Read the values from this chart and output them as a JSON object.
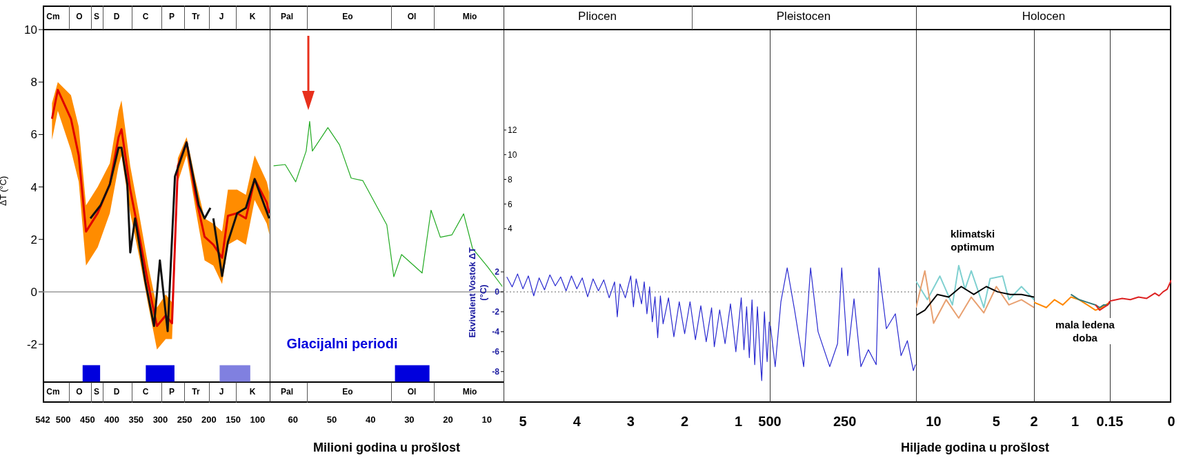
{
  "chart_data": [
    {
      "type": "line",
      "ylabel": "ΔT (°C)",
      "xlim": [
        542,
        75
      ],
      "xticks": [
        542,
        500,
        450,
        400,
        350,
        300,
        250,
        200,
        150,
        100
      ],
      "ylim": [
        -3.44,
        10
      ],
      "yticks": [
        -2,
        0,
        2,
        4,
        6,
        8,
        10
      ],
      "series": [
        {
          "color": "#e00000",
          "x": [
            523,
            511,
            484,
            468,
            453,
            429,
            404,
            386,
            380,
            362,
            343,
            325,
            307,
            289,
            276,
            264,
            246,
            228,
            209,
            191,
            173,
            161,
            142,
            124,
            106,
            81,
            76
          ],
          "values": [
            6.6,
            7.7,
            6.6,
            5.2,
            2.3,
            3.0,
            4.1,
            5.9,
            6.2,
            3.9,
            2.1,
            0.3,
            -1.3,
            -0.9,
            -1.2,
            4.8,
            5.7,
            3.7,
            2.1,
            1.8,
            1.3,
            2.9,
            3.0,
            2.8,
            4.3,
            3.4,
            3.0
          ],
          "lower": [
            5.8,
            6.9,
            5.4,
            4.2,
            1.0,
            1.7,
            3.0,
            4.8,
            5.2,
            3.0,
            1.3,
            -0.5,
            -2.2,
            -1.8,
            -1.8,
            4.2,
            5.2,
            3.2,
            1.2,
            1.0,
            0.3,
            1.8,
            2.0,
            1.8,
            3.5,
            2.6,
            2.2
          ],
          "upper": [
            7.2,
            8.0,
            7.5,
            6.3,
            3.3,
            4.0,
            4.9,
            6.9,
            7.3,
            4.8,
            2.9,
            1.0,
            -0.6,
            -0.1,
            -0.4,
            5.1,
            5.9,
            4.3,
            2.8,
            2.6,
            2.3,
            3.9,
            3.9,
            3.7,
            5.2,
            4.2,
            3.8
          ]
        },
        {
          "color": "#111111",
          "x": [
            444,
            423,
            404,
            386,
            380,
            368,
            362,
            352,
            331,
            313,
            301,
            285,
            270,
            246,
            221,
            209,
            197,
            194,
            191,
            173,
            161,
            142,
            124,
            106,
            94,
            76
          ],
          "values": [
            2.8,
            3.3,
            4.1,
            5.5,
            5.5,
            4.1,
            1.5,
            2.8,
            0.4,
            -1.3,
            1.2,
            -1.5,
            4.4,
            5.7,
            3.3,
            2.8,
            3.2,
            null,
            2.8,
            0.6,
            1.9,
            3.0,
            3.2,
            4.3,
            3.7,
            2.8
          ]
        }
      ],
      "ref_lines": [
        {
          "axis": "y",
          "value": 0,
          "color": "#999999",
          "line_style": "solid"
        }
      ],
      "bands": [
        {
          "axis": "x",
          "from": 460,
          "to": 424,
          "color": "#0000dd"
        },
        {
          "axis": "x",
          "from": 330,
          "to": 271,
          "color": "#0000dd"
        },
        {
          "axis": "x",
          "from": 178,
          "to": 115,
          "color": "#8080e0"
        }
      ],
      "annotations": [
        "Cm",
        "O",
        "S",
        "D",
        "C",
        "P",
        "Tr",
        "J",
        "K"
      ]
    },
    {
      "type": "line",
      "xlabel": "Milioni godina u prošlost",
      "y2label": "Ekvivalent Vostok ΔT (°C)",
      "xlim": [
        66,
        5.7
      ],
      "xticks": [
        60,
        50,
        40,
        30,
        20,
        10
      ],
      "y2lim": [
        -9.05,
        26.3
      ],
      "y2ticks": [
        2,
        0,
        -2,
        -4,
        -6,
        -8
      ],
      "y3lim": [
        -8.45,
        20.15
      ],
      "y3ticks": [
        4,
        6,
        8,
        10,
        12
      ],
      "series": [
        {
          "color": "#22aa22",
          "axis": "y3",
          "x": [
            65,
            62,
            59.3,
            56.6,
            55.7,
            55,
            51,
            48,
            45,
            42,
            35.8,
            34,
            32,
            26.7,
            24.4,
            22,
            19,
            16,
            13.7,
            9.8,
            6
          ],
          "values": [
            9.1,
            9.2,
            7.8,
            10.3,
            12.7,
            10.3,
            12.2,
            10.8,
            8.1,
            7.9,
            4.3,
            0.1,
            1.9,
            0.4,
            5.5,
            3.3,
            3.5,
            5.2,
            2.4,
            0.9,
            -0.7
          ]
        }
      ],
      "ref_lines": [
        {
          "axis": "y2",
          "value": 0,
          "color": "#999999",
          "line_style": "solid"
        }
      ],
      "bands": [
        {
          "axis": "x",
          "from": 33.7,
          "to": 24.8,
          "color": "#0000dd"
        }
      ],
      "annotations": [
        "Pal",
        "Eo",
        "Ol",
        "Mio",
        "Glacijalni periodi"
      ]
    },
    {
      "type": "line",
      "xlim": [
        5.36,
        0.42
      ],
      "xticks": [
        5,
        4,
        3,
        2,
        1
      ],
      "y2lim": [
        -11.12,
        26.3
      ],
      "y2ticks": [
        2,
        0,
        -2,
        -4,
        -6,
        -8
      ],
      "tick_labels": "x",
      "series": [
        {
          "color": "#2a2ad0",
          "axis": "y2",
          "x": [
            5.3,
            5.2,
            5.1,
            5.0,
            4.9,
            4.8,
            4.7,
            4.6,
            4.5,
            4.4,
            4.3,
            4.2,
            4.1,
            4.0,
            3.9,
            3.8,
            3.7,
            3.6,
            3.5,
            3.4,
            3.3,
            3.25,
            3.2,
            3.1,
            3.0,
            2.95,
            2.9,
            2.8,
            2.75,
            2.7,
            2.65,
            2.6,
            2.55,
            2.5,
            2.45,
            2.4,
            2.3,
            2.2,
            2.1,
            2.0,
            1.9,
            1.8,
            1.7,
            1.6,
            1.5,
            1.45,
            1.35,
            1.25,
            1.15,
            1.05,
            0.95,
            0.9,
            0.85,
            0.8,
            0.75,
            0.7,
            0.65,
            0.6,
            0.57,
            0.52,
            0.47,
            0.43
          ],
          "values": [
            1.5,
            0.5,
            1.8,
            0.3,
            1.6,
            -0.4,
            1.4,
            0.2,
            1.7,
            0.6,
            1.5,
            0.1,
            1.6,
            0.3,
            1.4,
            -0.5,
            1.3,
            0.1,
            1.2,
            -0.6,
            1.0,
            -2.5,
            0.8,
            -0.6,
            1.6,
            -1.5,
            1.3,
            -1.2,
            1.0,
            -2.2,
            0.5,
            -3.0,
            -0.5,
            -4.6,
            -0.4,
            -3.2,
            -0.6,
            -4.5,
            -1.0,
            -4.2,
            -1.0,
            -4.8,
            -1.4,
            -5.0,
            -1.6,
            -5.5,
            -1.8,
            -5.2,
            -1.2,
            -6.0,
            -0.6,
            -5.8,
            -1.5,
            -6.6,
            -0.8,
            -7.3,
            -1.5,
            -6.5,
            -8.9,
            -2.0,
            -7.0,
            -3.0
          ]
        }
      ],
      "ref_lines": [
        {
          "axis": "y2",
          "value": 0,
          "color": "#999999",
          "line_style": "dotted"
        }
      ],
      "annotations": [
        "Pliocen"
      ]
    },
    {
      "type": "line",
      "xlim": [
        500,
        12
      ],
      "xticks": [
        500,
        250
      ],
      "y2lim": [
        -11.12,
        26.3
      ],
      "y2ticks": [
        2,
        0,
        -2,
        -4,
        -6,
        -8
      ],
      "tick_labels": "x",
      "series": [
        {
          "color": "#2a2ad0",
          "axis": "y2",
          "x": [
            498,
            482,
            463,
            442,
            417,
            387,
            364,
            339,
            300,
            274,
            260,
            240,
            219,
            196,
            171,
            145,
            136,
            111,
            81,
            62,
            41,
            21,
            14
          ],
          "values": [
            -3.4,
            -7.5,
            -1.0,
            2.4,
            -1.9,
            -7.5,
            2.4,
            -4.0,
            -7.5,
            -5.2,
            2.4,
            -6.4,
            -0.7,
            -7.5,
            -5.8,
            -7.3,
            2.4,
            -3.7,
            -2.2,
            -6.4,
            -4.9,
            -7.9,
            -7.3
          ]
        }
      ],
      "ref_lines": [
        {
          "axis": "y2",
          "value": 0,
          "color": "#999999",
          "line_style": "dotted"
        }
      ],
      "annotations": [
        "Pleistocen"
      ]
    },
    {
      "type": "line",
      "xlabel": "Hiljade godina u prošlost",
      "xlim": [
        11.4,
        2
      ],
      "xticks": [
        10,
        5
      ],
      "ylim": [
        -4.23,
        10
      ],
      "yticks": [
        -2,
        0,
        2,
        4,
        6,
        8,
        10
      ],
      "tick_labels": "x",
      "series": [
        {
          "color": "#7fd0d0",
          "x": [
            11.4,
            10.5,
            9.5,
            8.5,
            8,
            7.5,
            7,
            6,
            5.5,
            4.5,
            4,
            3,
            2
          ],
          "values": [
            0.4,
            -0.3,
            0.6,
            -0.5,
            1.0,
            0.1,
            0.8,
            -0.6,
            0.5,
            0.6,
            -0.3,
            0.2,
            -0.3
          ]
        },
        {
          "color": "#e8a070",
          "x": [
            11.4,
            10.7,
            10,
            9,
            8,
            7,
            6,
            5,
            4,
            3,
            2
          ],
          "values": [
            -0.6,
            0.8,
            -1.2,
            -0.3,
            -1.0,
            -0.2,
            -0.8,
            0.2,
            -0.5,
            -0.3,
            -0.6
          ]
        },
        {
          "color": "#000000",
          "x": [
            11.4,
            11.4,
            10.7,
            9.7,
            8.8,
            7.8,
            6.8,
            5.8,
            4.9,
            3.9,
            3.0,
            2.0
          ],
          "values": [
            -2.8,
            -0.9,
            -0.7,
            -0.1,
            -0.2,
            0.2,
            -0.1,
            0.2,
            0.0,
            -0.1,
            -0.1,
            -0.2
          ]
        }
      ],
      "annotations": [
        "klimatski optimum"
      ]
    },
    {
      "type": "line",
      "xlim": [
        2,
        0.15
      ],
      "xticks": [
        2,
        1
      ],
      "ylim": [
        -4.23,
        10
      ],
      "yticks": [
        -2,
        0,
        2,
        4,
        6,
        8,
        10
      ],
      "tick_labels": "x",
      "series": [
        {
          "color": "#ff8800",
          "x": [
            2,
            1.7,
            1.5,
            1.3,
            1.1,
            0.9,
            0.7,
            0.5,
            0.35,
            0.25,
            0.15
          ],
          "values": [
            -0.4,
            -0.6,
            -0.3,
            -0.5,
            -0.2,
            -0.3,
            -0.5,
            -0.7,
            -0.6,
            -0.5,
            -0.4
          ]
        },
        {
          "color": "#337777",
          "x": [
            1.1,
            0.9,
            0.7,
            0.5,
            0.4,
            0.3,
            0.2,
            0.15
          ],
          "values": [
            -0.1,
            -0.3,
            -0.4,
            -0.5,
            -0.6,
            -0.5,
            -0.5,
            -0.4
          ]
        },
        {
          "color": "#dd2222",
          "x": [
            0.5,
            0.4,
            0.3,
            0.2,
            0.15
          ],
          "values": [
            -0.5,
            -0.7,
            -0.6,
            -0.5,
            -0.35
          ]
        }
      ],
      "annotations": [
        "Holocen",
        "mala ledena doba"
      ]
    },
    {
      "type": "line",
      "xlim": [
        0.15,
        0
      ],
      "xticks": [
        0.15,
        0
      ],
      "ylim": [
        -4.23,
        10
      ],
      "yticks": [
        -2,
        0,
        2,
        4,
        6,
        8,
        10
      ],
      "tick_labels": "x",
      "series": [
        {
          "color": "#dd2222",
          "x": [
            0.15,
            0.12,
            0.1,
            0.08,
            0.06,
            0.04,
            0.03,
            0.02,
            0.01,
            0
          ],
          "values": [
            -0.35,
            -0.25,
            -0.3,
            -0.2,
            -0.25,
            -0.05,
            -0.15,
            0.0,
            0.1,
            0.45
          ]
        }
      ]
    }
  ]
}
